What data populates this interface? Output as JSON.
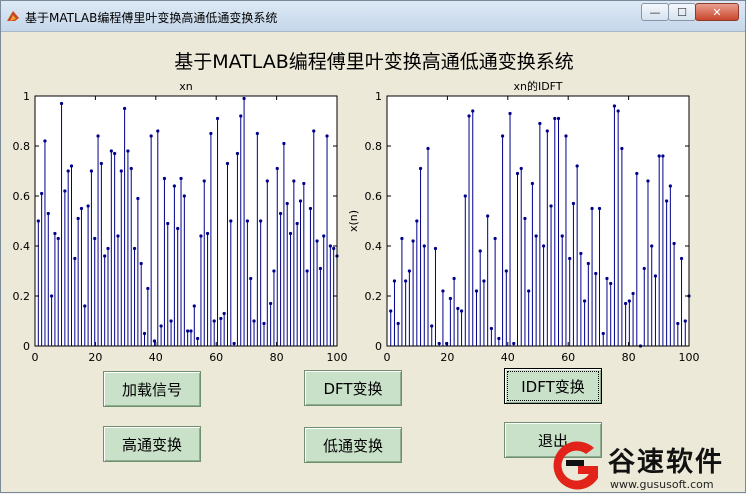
{
  "window": {
    "title": "基于MATLAB编程傅里叶变换高通低通变换系统",
    "controls": [
      "—",
      "☐",
      "✕"
    ]
  },
  "main_title": "基于MATLAB编程傅里叶变换高通低通变换系统",
  "buttons": {
    "load": "加载信号",
    "dft": "DFT变换",
    "idft": "IDFT变换",
    "highpass": "高通变换",
    "lowpass": "低通变换",
    "exit": "退出"
  },
  "watermark": {
    "brand": "谷速软件",
    "url": "www.gususoft.com"
  },
  "colors": {
    "stem": "#00008b",
    "button_bg": "#c9e0c9"
  },
  "chart_data": [
    {
      "type": "stem",
      "title": "xn",
      "xlabel": "",
      "ylabel": "",
      "xlim": [
        0,
        100
      ],
      "ylim": [
        0,
        1
      ],
      "xticks": [
        "0",
        "20",
        "40",
        "60",
        "80",
        "100"
      ],
      "yticks": [
        "0",
        "0.2",
        "0.4",
        "0.6",
        "0.8",
        "1"
      ],
      "values": [
        0.5,
        0.61,
        0.82,
        0.53,
        0.2,
        0.45,
        0.43,
        0.97,
        0.62,
        0.7,
        0.72,
        0.35,
        0.51,
        0.55,
        0.16,
        0.56,
        0.7,
        0.43,
        0.84,
        0.73,
        0.36,
        0.39,
        0.78,
        0.77,
        0.44,
        0.7,
        0.95,
        0.78,
        0.71,
        0.39,
        0.59,
        0.33,
        0.05,
        0.23,
        0.84,
        0.02,
        0.86,
        0.08,
        0.67,
        0.49,
        0.1,
        0.64,
        0.47,
        0.67,
        0.6,
        0.06,
        0.06,
        0.16,
        0.03,
        0.44,
        0.66,
        0.45,
        0.85,
        0.1,
        0.91,
        0.11,
        0.13,
        0.73,
        0.5,
        0.01,
        0.77,
        0.92,
        0.99,
        0.5,
        0.27,
        0.1,
        0.85,
        0.5,
        0.09,
        0.66,
        0.17,
        0.3,
        0.71,
        0.53,
        0.81,
        0.57,
        0.45,
        0.66,
        0.49,
        0.58,
        0.65,
        0.3,
        0.55,
        0.86,
        0.42,
        0.31,
        0.44,
        0.84,
        0.4,
        0.39,
        0.36
      ]
    },
    {
      "type": "stem",
      "title": "xn的IDFT",
      "xlabel": "",
      "ylabel": "x(n)",
      "xlim": [
        0,
        100
      ],
      "ylim": [
        0,
        1
      ],
      "xticks": [
        "0",
        "20",
        "40",
        "60",
        "80",
        "100"
      ],
      "yticks": [
        "0",
        "0.2",
        "0.4",
        "0.6",
        "0.8",
        "1"
      ],
      "values": [
        0.14,
        0.26,
        0.09,
        0.43,
        0.26,
        0.3,
        0.42,
        0.5,
        0.71,
        0.4,
        0.79,
        0.08,
        0.39,
        0.01,
        0.22,
        0.01,
        0.19,
        0.27,
        0.15,
        0.14,
        0.6,
        0.92,
        0.94,
        0.22,
        0.38,
        0.26,
        0.52,
        0.07,
        0.43,
        0.03,
        0.84,
        0.3,
        0.93,
        0.01,
        0.69,
        0.71,
        0.51,
        0.22,
        0.65,
        0.44,
        0.89,
        0.4,
        0.86,
        0.56,
        0.91,
        0.91,
        0.44,
        0.84,
        0.35,
        0.57,
        0.72,
        0.37,
        0.18,
        0.33,
        0.55,
        0.29,
        0.55,
        0.05,
        0.27,
        0.25,
        0.96,
        0.94,
        0.79,
        0.17,
        0.18,
        0.21,
        0.69,
        0.0,
        0.31,
        0.66,
        0.4,
        0.28,
        0.76,
        0.76,
        0.58,
        0.64,
        0.41,
        0.09,
        0.35,
        0.1,
        0.2
      ]
    }
  ]
}
